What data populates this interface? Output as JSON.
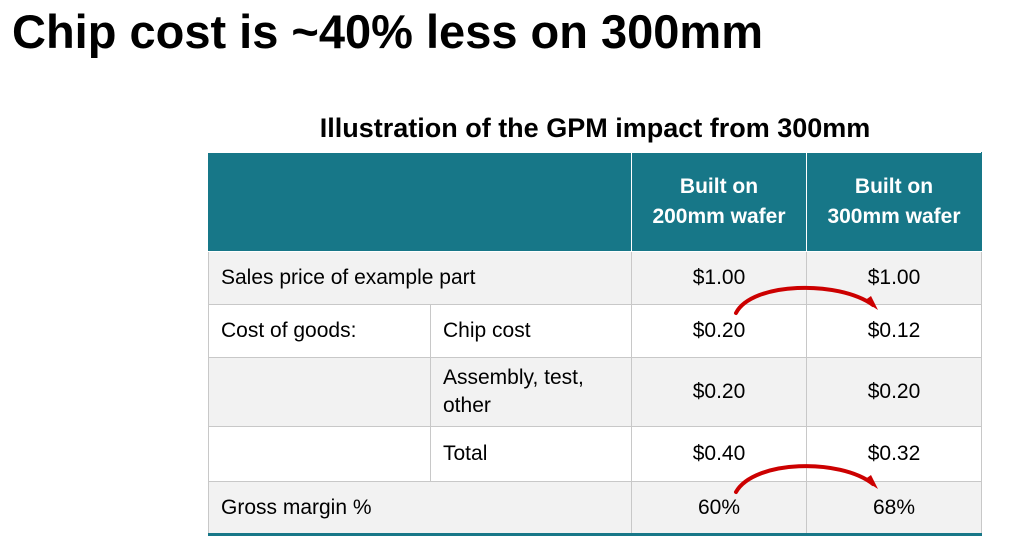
{
  "slide": {
    "title": "Chip cost is ~40% less on 300mm",
    "table_title": "Illustration of the GPM impact from 300mm"
  },
  "table": {
    "headers": [
      "",
      "Built on 200mm wafer",
      "Built on 300mm wafer"
    ],
    "rows": [
      {
        "label": "Sales price of example part",
        "sublabel": "",
        "v200": "$1.00",
        "v300": "$1.00"
      },
      {
        "label": "Cost of goods:",
        "sublabel": "Chip cost",
        "v200": "$0.20",
        "v300": "$0.12"
      },
      {
        "label": "",
        "sublabel": "Assembly, test, other",
        "v200": "$0.20",
        "v300": "$0.20"
      },
      {
        "label": "",
        "sublabel": "Total",
        "v200": "$0.40",
        "v300": "$0.32"
      },
      {
        "label": "Gross margin %",
        "sublabel": "",
        "v200": "60%",
        "v300": "68%"
      }
    ]
  },
  "colors": {
    "header_bg": "#177788",
    "arrow": "#cc0000",
    "band_row": "#f2f2f2"
  }
}
